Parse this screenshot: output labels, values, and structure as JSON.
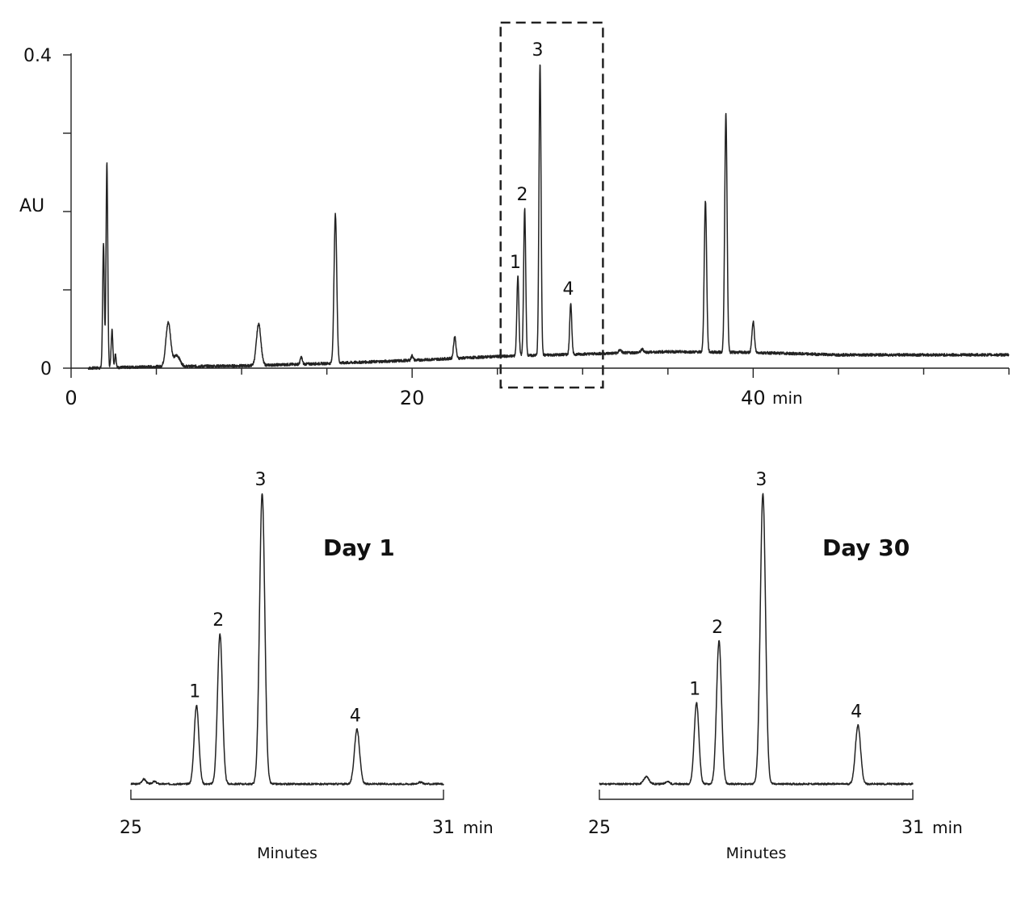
{
  "chart_data": [
    {
      "type": "line",
      "title": "",
      "xlabel": "",
      "ylabel": "AU",
      "x_unit": "min",
      "xlim": [
        0,
        55
      ],
      "ylim": [
        0,
        0.4
      ],
      "x_ticks_major": [
        0,
        20,
        40
      ],
      "x_ticks_minor": [
        5,
        10,
        15,
        25,
        30,
        35,
        45,
        50,
        55
      ],
      "y_ticks": [
        0,
        0.1,
        0.2,
        0.3,
        0.4
      ],
      "y_tick_labels": [
        "0",
        "",
        "",
        "",
        "0.4"
      ],
      "grid": false,
      "baseline": {
        "x": [
          0,
          1,
          5,
          10,
          15,
          20,
          25,
          30,
          35,
          40,
          45,
          55
        ],
        "y": [
          0,
          0,
          0.002,
          0.003,
          0.006,
          0.01,
          0.015,
          0.018,
          0.021,
          0.02,
          0.017,
          0.017
        ]
      },
      "peaks": [
        {
          "x": 1.9,
          "height": 0.157,
          "width": 0.05
        },
        {
          "x": 2.1,
          "height": 0.262,
          "width": 0.05
        },
        {
          "x": 2.4,
          "height": 0.048,
          "width": 0.05
        },
        {
          "x": 2.6,
          "height": 0.018,
          "width": 0.04
        },
        {
          "x": 5.7,
          "height": 0.056,
          "width": 0.14
        },
        {
          "x": 6.2,
          "height": 0.014,
          "width": 0.18
        },
        {
          "x": 11.0,
          "height": 0.053,
          "width": 0.13
        },
        {
          "x": 13.5,
          "height": 0.009,
          "width": 0.06
        },
        {
          "x": 15.5,
          "height": 0.19,
          "width": 0.08
        },
        {
          "x": 20.0,
          "height": 0.006,
          "width": 0.06
        },
        {
          "x": 22.5,
          "height": 0.028,
          "width": 0.07
        },
        {
          "x": 26.2,
          "height": 0.102,
          "width": 0.06,
          "label": "1"
        },
        {
          "x": 26.6,
          "height": 0.188,
          "width": 0.06,
          "label": "2"
        },
        {
          "x": 27.5,
          "height": 0.372,
          "width": 0.06,
          "label": "3"
        },
        {
          "x": 29.3,
          "height": 0.066,
          "width": 0.06,
          "label": "4"
        },
        {
          "x": 32.2,
          "height": 0.004,
          "width": 0.08
        },
        {
          "x": 33.5,
          "height": 0.004,
          "width": 0.08
        },
        {
          "x": 37.2,
          "height": 0.193,
          "width": 0.07
        },
        {
          "x": 38.4,
          "height": 0.304,
          "width": 0.07
        },
        {
          "x": 40.0,
          "height": 0.04,
          "width": 0.07
        }
      ],
      "highlight_range": [
        25,
        31
      ],
      "annotations": [
        "1",
        "2",
        "3",
        "4"
      ]
    },
    {
      "type": "line",
      "title": "Day 1",
      "xlabel": "Minutes",
      "x_unit": "min",
      "xlim": [
        25,
        31
      ],
      "ylim": [
        0,
        0.38
      ],
      "x_tick_labels": [
        "25",
        "31"
      ],
      "grid": false,
      "baseline": 0.005,
      "peaks": [
        {
          "x": 26.26,
          "height": 0.098,
          "width": 0.045,
          "label": "1"
        },
        {
          "x": 26.71,
          "height": 0.187,
          "width": 0.047,
          "label": "2"
        },
        {
          "x": 27.52,
          "height": 0.362,
          "width": 0.05,
          "label": "3"
        },
        {
          "x": 29.34,
          "height": 0.068,
          "width": 0.05,
          "label": "4"
        },
        {
          "x": 25.25,
          "height": 0.006,
          "width": 0.04
        },
        {
          "x": 25.45,
          "height": 0.003,
          "width": 0.04
        },
        {
          "x": 30.55,
          "height": 0.002,
          "width": 0.05
        }
      ],
      "annotations": [
        "1",
        "2",
        "3",
        "4"
      ]
    },
    {
      "type": "line",
      "title": "Day 30",
      "xlabel": "Minutes",
      "x_unit": "min",
      "xlim": [
        25,
        31
      ],
      "ylim": [
        0,
        0.38
      ],
      "x_tick_labels": [
        "25",
        "31"
      ],
      "grid": false,
      "baseline": 0.005,
      "peaks": [
        {
          "x": 26.86,
          "height": 0.101,
          "width": 0.045,
          "label": "1"
        },
        {
          "x": 27.29,
          "height": 0.178,
          "width": 0.047,
          "label": "2"
        },
        {
          "x": 28.13,
          "height": 0.362,
          "width": 0.05,
          "label": "3"
        },
        {
          "x": 29.95,
          "height": 0.073,
          "width": 0.05,
          "label": "4"
        },
        {
          "x": 25.9,
          "height": 0.009,
          "width": 0.05
        },
        {
          "x": 26.3,
          "height": 0.003,
          "width": 0.04
        }
      ],
      "annotations": [
        "1",
        "2",
        "3",
        "4"
      ]
    }
  ]
}
